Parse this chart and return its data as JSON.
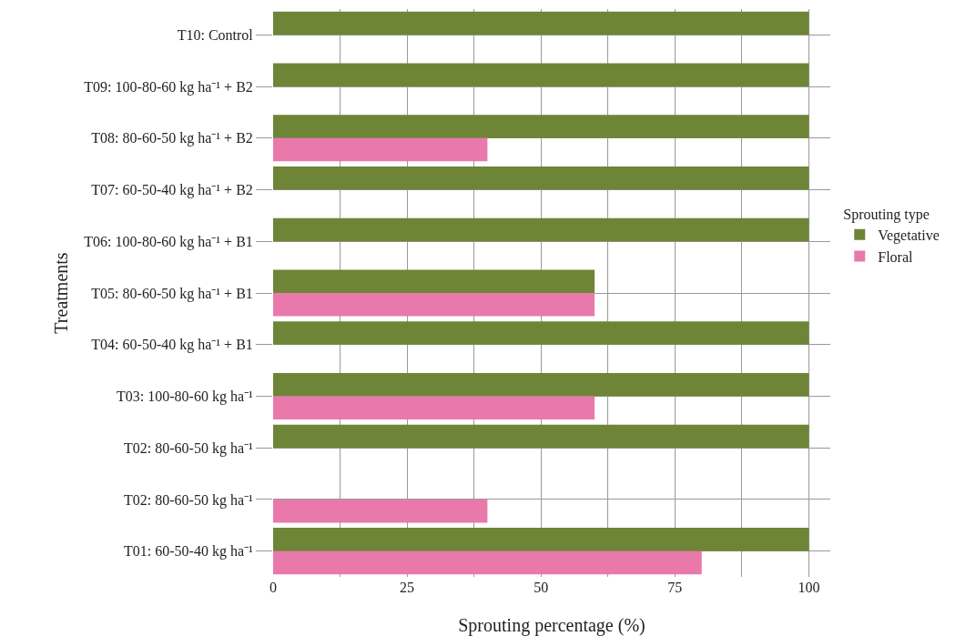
{
  "chart_data": {
    "type": "bar",
    "orientation": "horizontal",
    "xlabel": "Sprouting percentage (%)",
    "ylabel": "Treatments",
    "legend_title": "Sprouting type",
    "legend": "right",
    "categories": [
      "T10: Control",
      "T09: 100-80-60 kg ha⁻¹ + B2",
      "T08: 80-60-50 kg ha⁻¹ + B2",
      "T07: 60-50-40 kg ha⁻¹ + B2",
      "T06: 100-80-60 kg ha⁻¹ + B1",
      "T05: 80-60-50 kg ha⁻¹ + B1",
      "T04: 60-50-40 kg ha⁻¹ + B1",
      "T03: 100-80-60 kg ha⁻¹",
      "T02: 80-60-50 kg ha⁻¹",
      "T02: 80-60-50 kg ha⁻¹",
      "T01: 60-50-40 kg ha⁻¹"
    ],
    "series": [
      {
        "name": "Vegetative",
        "color": "#6e8537",
        "values": [
          100,
          100,
          100,
          100,
          100,
          60,
          100,
          100,
          100,
          null,
          100
        ]
      },
      {
        "name": "Floral",
        "color": "#e979ab",
        "values": [
          null,
          null,
          40,
          null,
          null,
          60,
          null,
          60,
          null,
          40,
          80
        ]
      }
    ],
    "xlim": [
      0,
      104
    ],
    "xticks": [
      0,
      25,
      50,
      75,
      100
    ],
    "grid": true
  }
}
